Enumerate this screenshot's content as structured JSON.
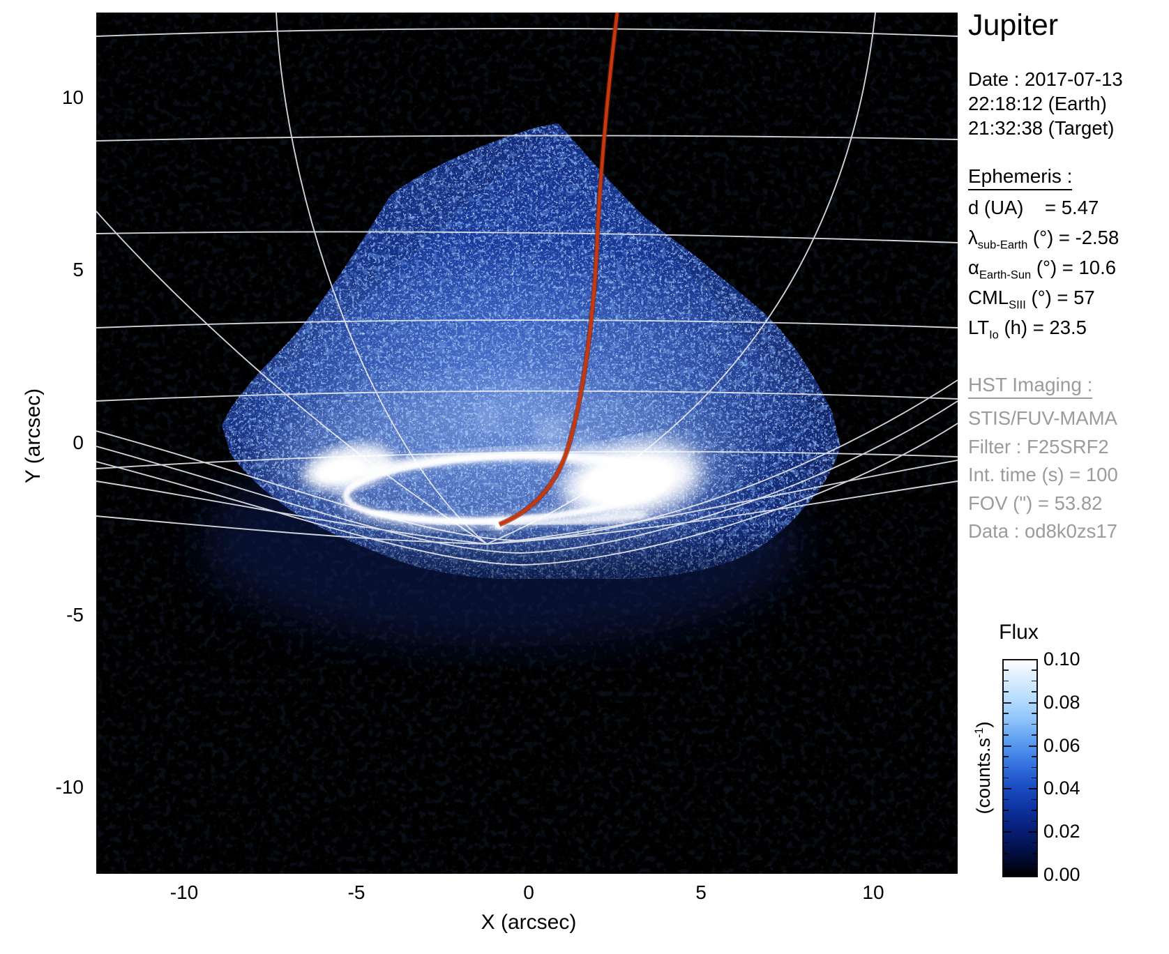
{
  "title": "Jupiter",
  "observation": {
    "date_line": "Date : 2017-07-13",
    "earth_time": "22:18:12 (Earth)",
    "target_time": "21:32:38 (Target)"
  },
  "ephemeris": {
    "heading": "Ephemeris : ",
    "lines": [
      [
        {
          "t": "d (UA)    = 5.47"
        }
      ],
      [
        {
          "t": "λ"
        },
        {
          "s": "sub-Earth"
        },
        {
          "t": " (°) = -2.58"
        }
      ],
      [
        {
          "t": "α"
        },
        {
          "s": "Earth-Sun"
        },
        {
          "t": " (°) = 10.6"
        }
      ],
      [
        {
          "t": "CML"
        },
        {
          "s": "SIII"
        },
        {
          "t": " (°) = 57"
        }
      ],
      [
        {
          "t": "LT"
        },
        {
          "s": "Io"
        },
        {
          "t": " (h) = 23.5"
        }
      ]
    ]
  },
  "hst": {
    "heading": "HST Imaging : ",
    "lines": [
      "STIS/FUV-MAMA",
      "Filter : F25SRF2",
      "Int. time (s) = 100",
      "FOV (\") = 53.82",
      "Data : od8k0zs17"
    ]
  },
  "axes": {
    "xlabel": "X (arcsec)",
    "ylabel": "Y (arcsec)",
    "x_ticks": [
      "-10",
      "-5",
      "0",
      "5",
      "10"
    ],
    "y_ticks": [
      "10",
      "5",
      "0",
      "-5",
      "-10"
    ]
  },
  "colorbar": {
    "title": "Flux",
    "unit_prefix": "(counts.s",
    "unit_sup": "-1",
    "unit_suffix": ")",
    "tick_labels": [
      "0.10",
      "0.08",
      "0.06",
      "0.04",
      "0.02",
      "0.00"
    ],
    "range": [
      0.0,
      0.1
    ],
    "colormap": [
      "#000000",
      "#03104a",
      "#0e35a3",
      "#3674e0",
      "#8cc2fa",
      "#ffffff"
    ]
  },
  "chart_data": {
    "type": "heatmap",
    "title": "Jupiter FUV auroral image (HST/STIS)",
    "xlabel": "X (arcsec)",
    "ylabel": "Y (arcsec)",
    "xlim": [
      -12.5,
      12.5
    ],
    "ylim": [
      -12.5,
      12.5
    ],
    "x_tick_values": [
      -10,
      -5,
      0,
      5,
      10
    ],
    "y_tick_values": [
      10,
      5,
      0,
      -5,
      -10
    ],
    "flux_label": "Flux",
    "flux_units": "counts.s-1",
    "flux_range": [
      0.0,
      0.1
    ],
    "flux_tick_values": [
      0.1,
      0.08,
      0.06,
      0.04,
      0.02,
      0.0
    ],
    "grid": "planetocentric graticule (white lat/lon lines converging below auroral oval)",
    "legend_position": "right colorbar",
    "features": {
      "detector_field": {
        "shape": "rotated-square (diamond), noisy blue counts, fades to black at bottom",
        "corners_arcsec": [
          [
            0.85,
            9.3
          ],
          [
            9.05,
            0.5
          ],
          [
            0.0,
            -3.9
          ],
          [
            -8.9,
            0.5
          ]
        ]
      },
      "auroral_oval": {
        "center_arcsec": [
          -0.8,
          -1.3
        ],
        "semi_axes_arcsec": [
          4.5,
          0.95
        ],
        "bright_region_east_arcsec": [
          3.0,
          -1.1
        ],
        "bright_region_west_arcsec": [
          -5.2,
          -0.7
        ]
      },
      "io_footprint_dot_arcsec": [
        -0.85,
        -2.35
      ],
      "red_track": {
        "description": "orange-red curve from top of frame down to footprint dot",
        "points_arcsec": [
          [
            2.57,
            12.5
          ],
          [
            2.0,
            6.2
          ],
          [
            1.5,
            0.5
          ],
          [
            -0.85,
            -2.35
          ]
        ],
        "color": "#c8380f"
      },
      "background": "#000000",
      "graticule_color": "#eceef2"
    }
  }
}
